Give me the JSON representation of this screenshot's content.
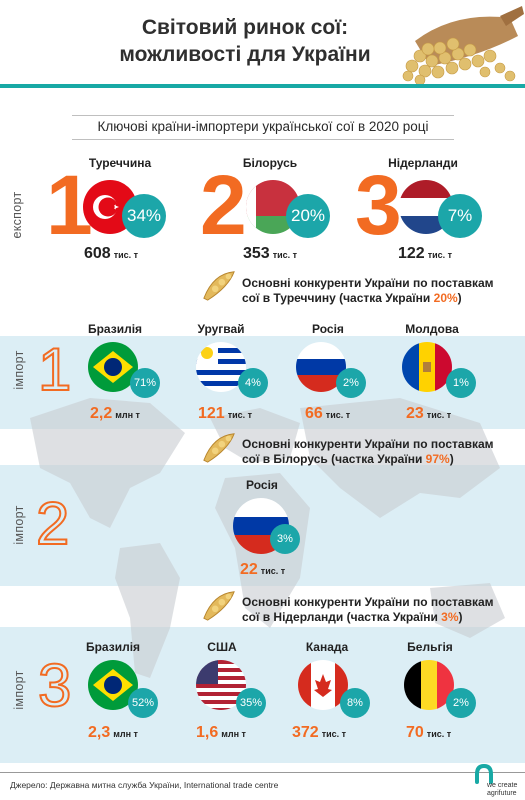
{
  "header": {
    "title_line1": "Світовий ринок сої:",
    "title_line2": "можливості для України"
  },
  "export_section": {
    "subtitle": "Ключові країни-імпортери української сої в 2020 році",
    "side_label": "експорт",
    "countries": [
      {
        "rank": "1",
        "name": "Туреччина",
        "share": "34%",
        "volume": "608",
        "unit": "тис. т"
      },
      {
        "rank": "2",
        "name": "Білорусь",
        "share": "20%",
        "volume": "353",
        "unit": "тис. т"
      },
      {
        "rank": "3",
        "name": "Нідерланди",
        "share": "7%",
        "volume": "122",
        "unit": "тис. т"
      }
    ]
  },
  "import_blocks": [
    {
      "rank": "1",
      "side_label": "імпорт",
      "heading_line1": "Основні конкуренти України по поставкам",
      "heading_line2_pre": "сої в Туреччину (частка України ",
      "heading_share": "20%",
      "heading_line2_post": ")",
      "countries": [
        {
          "name": "Бразилія",
          "share": "71%",
          "volume": "2,2",
          "unit": "млн т"
        },
        {
          "name": "Уругвай",
          "share": "4%",
          "volume": "121",
          "unit": "тис. т"
        },
        {
          "name": "Росія",
          "share": "2%",
          "volume": "66",
          "unit": "тис. т"
        },
        {
          "name": "Молдова",
          "share": "1%",
          "volume": "23",
          "unit": "тис. т"
        }
      ]
    },
    {
      "rank": "2",
      "side_label": "імпорт",
      "heading_line1": "Основні конкуренти України по поставкам",
      "heading_line2_pre": "сої в Білорусь (частка України ",
      "heading_share": "97%",
      "heading_line2_post": ")",
      "countries": [
        {
          "name": "Росія",
          "share": "3%",
          "volume": "22",
          "unit": "тис. т"
        }
      ]
    },
    {
      "rank": "3",
      "side_label": "імпорт",
      "heading_line1": "Основні конкуренти України по поставкам",
      "heading_line2_pre": "сої в Нідерланди (частка України ",
      "heading_share": "3%",
      "heading_line2_post": ")",
      "countries": [
        {
          "name": "Бразилія",
          "share": "52%",
          "volume": "2,3",
          "unit": "млн т"
        },
        {
          "name": "США",
          "share": "35%",
          "volume": "1,6",
          "unit": "млн т"
        },
        {
          "name": "Канада",
          "share": "8%",
          "volume": "372",
          "unit": "тис. т"
        },
        {
          "name": "Бельгія",
          "share": "2%",
          "volume": "70",
          "unit": "тис. т"
        }
      ]
    }
  ],
  "footer": {
    "source": "Джерело: Державна митна служба України, International trade centre",
    "logo_line1": "we create",
    "logo_line2": "agrifuture"
  },
  "colors": {
    "accent_orange": "#f26b22",
    "accent_teal": "#1ca6a9",
    "band_blue": "#dceef5"
  },
  "icons": [
    "soybean-scoop-illustration",
    "soybean-pod-icon",
    "world-map-background",
    "brand-logo-icon"
  ]
}
